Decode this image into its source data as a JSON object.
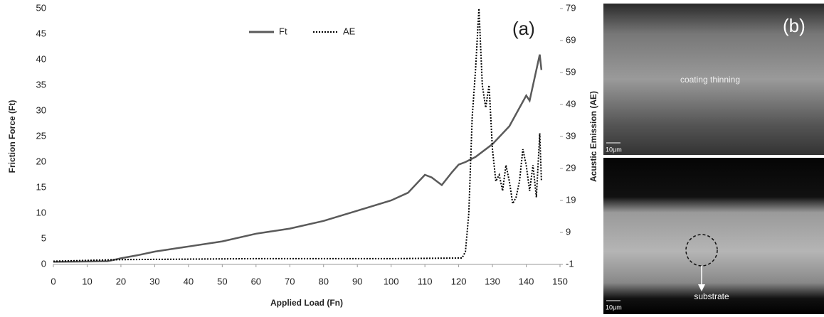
{
  "chart_data": {
    "type": "line",
    "x_label": "Applied Load (Fn)",
    "y_label": "Friction Force (Ft)",
    "y2_label": "Acustic Emission (AE)",
    "annotation": "(a)",
    "xlim": [
      0,
      150
    ],
    "xticks": [
      0,
      10,
      20,
      30,
      40,
      50,
      60,
      70,
      80,
      90,
      100,
      110,
      120,
      130,
      140,
      150
    ],
    "ylim": [
      0,
      50
    ],
    "yticks": [
      0,
      5,
      10,
      15,
      20,
      25,
      30,
      35,
      40,
      45,
      50
    ],
    "y2lim": [
      -1,
      79
    ],
    "y2ticks": [
      -1,
      9,
      19,
      29,
      39,
      49,
      59,
      69,
      79
    ],
    "legend": "top",
    "grid": false,
    "series": [
      {
        "name": "Ft",
        "color": "#5a5a5a",
        "line_style": "solid",
        "x": [
          0,
          16,
          20,
          25,
          30,
          40,
          50,
          60,
          70,
          80,
          90,
          100,
          105,
          110,
          112,
          115,
          118,
          120,
          122,
          125,
          130,
          135,
          140,
          141,
          143,
          144,
          144.5
        ],
        "values": [
          0.5,
          0.6,
          1.2,
          1.8,
          2.5,
          3.5,
          4.5,
          6,
          7,
          8.5,
          10.5,
          12.5,
          14,
          17.5,
          17,
          15.5,
          18,
          19.5,
          20,
          21,
          23.5,
          27,
          33,
          32,
          38,
          41,
          38
        ]
      },
      {
        "name": "AE",
        "color": "#000000",
        "line_style": "dotted",
        "axis": "y2",
        "x": [
          0,
          20,
          60,
          100,
          121,
          122,
          123,
          124,
          125,
          126,
          127,
          128,
          129,
          130,
          131,
          132,
          133,
          134,
          135,
          136,
          137,
          138,
          139,
          140,
          141,
          142,
          143,
          144,
          144.5
        ],
        "values": [
          0,
          0.5,
          0.8,
          0.8,
          1,
          3,
          15,
          45,
          60,
          79,
          55,
          48,
          55,
          35,
          25,
          27,
          22,
          30,
          25,
          18,
          20,
          25,
          35,
          30,
          22,
          30,
          20,
          40,
          25
        ]
      }
    ]
  },
  "panel_b": {
    "label": "(b)",
    "images": [
      {
        "annotation": "coating thinning",
        "scale_bar": "10µm"
      },
      {
        "annotation": "substrate",
        "scale_bar": "10µm"
      }
    ]
  }
}
